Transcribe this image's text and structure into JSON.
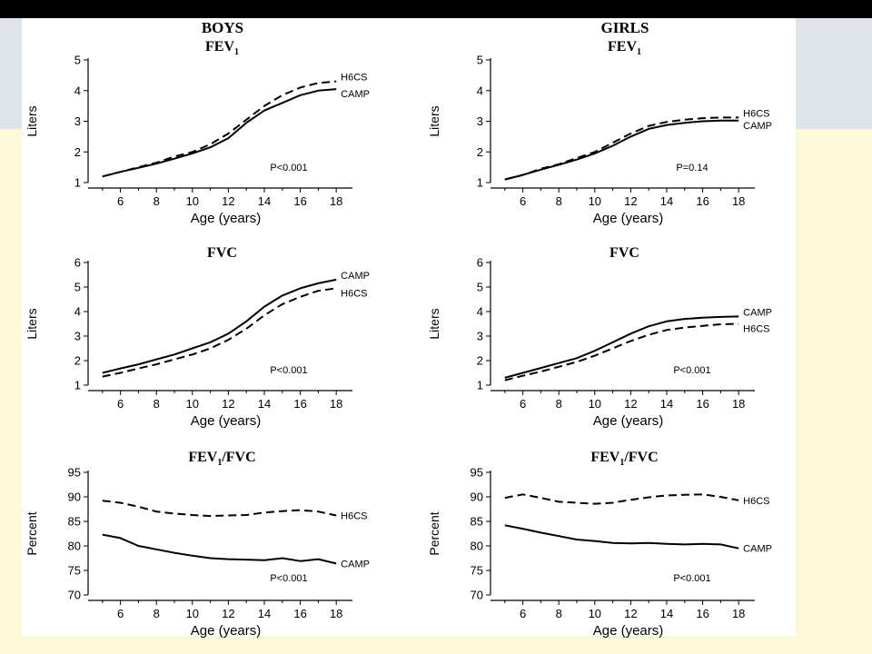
{
  "headers": {
    "left": "BOYS",
    "right": "GIRLS"
  },
  "chart_data": [
    {
      "type": "line",
      "group": "BOYS",
      "title": "FEV",
      "title_sub": "1",
      "title_suffix": "",
      "xlabel": "Age (years)",
      "ylabel": "Liters",
      "xlim": [
        5,
        18
      ],
      "ylim": [
        1,
        5
      ],
      "yticks": [
        1,
        2,
        3,
        4,
        5
      ],
      "xticks": [
        6,
        8,
        10,
        12,
        14,
        16,
        18
      ],
      "annotation": "P<0.001",
      "series": [
        {
          "name": "H6CS",
          "style": "dashed",
          "x": [
            5,
            6,
            7,
            8,
            9,
            10,
            11,
            12,
            13,
            14,
            15,
            16,
            17,
            18
          ],
          "y": [
            1.2,
            1.35,
            1.5,
            1.65,
            1.85,
            2.0,
            2.25,
            2.6,
            3.05,
            3.5,
            3.85,
            4.1,
            4.25,
            4.3
          ]
        },
        {
          "name": "CAMP",
          "style": "solid",
          "x": [
            5,
            6,
            7,
            8,
            9,
            10,
            11,
            12,
            13,
            14,
            15,
            16,
            17,
            18
          ],
          "y": [
            1.2,
            1.35,
            1.48,
            1.62,
            1.78,
            1.95,
            2.15,
            2.45,
            2.95,
            3.35,
            3.6,
            3.85,
            4.0,
            4.05
          ]
        }
      ]
    },
    {
      "type": "line",
      "group": "GIRLS",
      "title": "FEV",
      "title_sub": "1",
      "title_suffix": "",
      "xlabel": "Age (years)",
      "ylabel": "Liters",
      "xlim": [
        5,
        18
      ],
      "ylim": [
        1,
        5
      ],
      "yticks": [
        1,
        2,
        3,
        4,
        5
      ],
      "xticks": [
        6,
        8,
        10,
        12,
        14,
        16,
        18
      ],
      "annotation": "P=0.14",
      "series": [
        {
          "name": "H6CS",
          "style": "dashed",
          "x": [
            5,
            6,
            7,
            8,
            9,
            10,
            11,
            12,
            13,
            14,
            15,
            16,
            17,
            18
          ],
          "y": [
            1.1,
            1.25,
            1.45,
            1.6,
            1.8,
            2.0,
            2.3,
            2.6,
            2.85,
            2.98,
            3.05,
            3.1,
            3.12,
            3.12
          ]
        },
        {
          "name": "CAMP",
          "style": "solid",
          "x": [
            5,
            6,
            7,
            8,
            9,
            10,
            11,
            12,
            13,
            14,
            15,
            16,
            17,
            18
          ],
          "y": [
            1.1,
            1.25,
            1.42,
            1.58,
            1.75,
            1.95,
            2.2,
            2.5,
            2.75,
            2.88,
            2.95,
            3.0,
            3.02,
            3.02
          ]
        }
      ]
    },
    {
      "type": "line",
      "group": "BOYS",
      "title": "FVC",
      "title_sub": "",
      "title_suffix": "",
      "xlabel": "Age (years)",
      "ylabel": "Liters",
      "xlim": [
        5,
        18
      ],
      "ylim": [
        1,
        6
      ],
      "yticks": [
        1,
        2,
        3,
        4,
        5,
        6
      ],
      "xticks": [
        6,
        8,
        10,
        12,
        14,
        16,
        18
      ],
      "annotation": "P<0.001",
      "series": [
        {
          "name": "CAMP",
          "style": "solid",
          "x": [
            5,
            6,
            7,
            8,
            9,
            10,
            11,
            12,
            13,
            14,
            15,
            16,
            17,
            18
          ],
          "y": [
            1.5,
            1.68,
            1.85,
            2.05,
            2.25,
            2.5,
            2.75,
            3.1,
            3.6,
            4.2,
            4.65,
            4.95,
            5.15,
            5.3
          ]
        },
        {
          "name": "H6CS",
          "style": "dashed",
          "x": [
            5,
            6,
            7,
            8,
            9,
            10,
            11,
            12,
            13,
            14,
            15,
            16,
            17,
            18
          ],
          "y": [
            1.35,
            1.5,
            1.68,
            1.85,
            2.05,
            2.25,
            2.5,
            2.85,
            3.3,
            3.85,
            4.3,
            4.6,
            4.85,
            4.95
          ]
        }
      ]
    },
    {
      "type": "line",
      "group": "GIRLS",
      "title": "FVC",
      "title_sub": "",
      "title_suffix": "",
      "xlabel": "Age (years)",
      "ylabel": "Liters",
      "xlim": [
        5,
        18
      ],
      "ylim": [
        1,
        6
      ],
      "yticks": [
        1,
        2,
        3,
        4,
        5,
        6
      ],
      "xticks": [
        6,
        8,
        10,
        12,
        14,
        16,
        18
      ],
      "annotation": "P<0.001",
      "series": [
        {
          "name": "CAMP",
          "style": "solid",
          "x": [
            5,
            6,
            7,
            8,
            9,
            10,
            11,
            12,
            13,
            14,
            15,
            16,
            17,
            18
          ],
          "y": [
            1.3,
            1.5,
            1.7,
            1.9,
            2.1,
            2.4,
            2.75,
            3.1,
            3.4,
            3.6,
            3.7,
            3.75,
            3.78,
            3.8
          ]
        },
        {
          "name": "H6CS",
          "style": "dashed",
          "x": [
            5,
            6,
            7,
            8,
            9,
            10,
            11,
            12,
            13,
            14,
            15,
            16,
            17,
            18
          ],
          "y": [
            1.2,
            1.38,
            1.55,
            1.75,
            1.95,
            2.2,
            2.5,
            2.8,
            3.05,
            3.25,
            3.35,
            3.42,
            3.48,
            3.5
          ]
        }
      ]
    },
    {
      "type": "line",
      "group": "BOYS",
      "title": "FEV",
      "title_sub": "1",
      "title_suffix": "/FVC",
      "xlabel": "Age (years)",
      "ylabel": "Percent",
      "xlim": [
        5,
        18
      ],
      "ylim": [
        70,
        95
      ],
      "yticks": [
        70,
        75,
        80,
        85,
        90,
        95
      ],
      "xticks": [
        6,
        8,
        10,
        12,
        14,
        16,
        18
      ],
      "annotation": "P<0.001",
      "series": [
        {
          "name": "H6CS",
          "style": "dashed",
          "x": [
            5,
            6,
            7,
            8,
            9,
            10,
            11,
            12,
            13,
            14,
            15,
            16,
            17,
            18
          ],
          "y": [
            89.2,
            88.8,
            88.0,
            87.0,
            86.6,
            86.3,
            86.1,
            86.2,
            86.3,
            86.8,
            87.1,
            87.3,
            87.0,
            86.2
          ]
        },
        {
          "name": "CAMP",
          "style": "solid",
          "x": [
            5,
            6,
            7,
            8,
            9,
            10,
            11,
            12,
            13,
            14,
            15,
            16,
            17,
            18
          ],
          "y": [
            82.3,
            81.6,
            80.0,
            79.3,
            78.6,
            78.0,
            77.5,
            77.3,
            77.2,
            77.1,
            77.5,
            76.9,
            77.3,
            76.4
          ]
        }
      ]
    },
    {
      "type": "line",
      "group": "GIRLS",
      "title": "FEV",
      "title_sub": "1",
      "title_suffix": "/FVC",
      "xlabel": "Age (years)",
      "ylabel": "Percent",
      "xlim": [
        5,
        18
      ],
      "ylim": [
        70,
        95
      ],
      "yticks": [
        70,
        75,
        80,
        85,
        90,
        95
      ],
      "xticks": [
        6,
        8,
        10,
        12,
        14,
        16,
        18
      ],
      "annotation": "P<0.001",
      "series": [
        {
          "name": "H6CS",
          "style": "dashed",
          "x": [
            5,
            6,
            7,
            8,
            9,
            10,
            11,
            12,
            13,
            14,
            15,
            16,
            17,
            18
          ],
          "y": [
            89.8,
            90.5,
            89.8,
            89.0,
            88.8,
            88.6,
            88.8,
            89.4,
            89.9,
            90.3,
            90.4,
            90.5,
            90.0,
            89.3
          ]
        },
        {
          "name": "CAMP",
          "style": "solid",
          "x": [
            5,
            6,
            7,
            8,
            9,
            10,
            11,
            12,
            13,
            14,
            15,
            16,
            17,
            18
          ],
          "y": [
            84.2,
            83.5,
            82.7,
            82.0,
            81.3,
            81.0,
            80.6,
            80.5,
            80.6,
            80.4,
            80.3,
            80.4,
            80.3,
            79.5
          ]
        }
      ]
    }
  ]
}
